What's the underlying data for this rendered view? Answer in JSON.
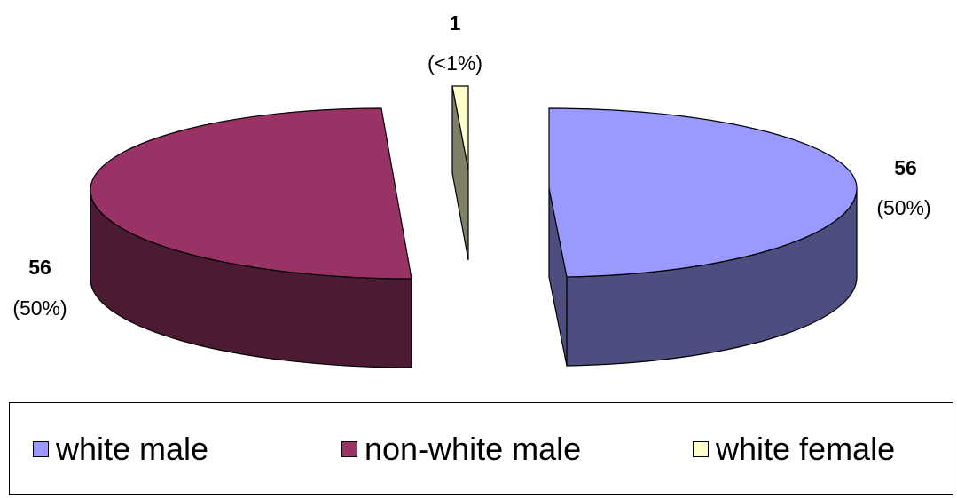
{
  "chart_data": {
    "type": "pie",
    "categories": [
      "white male",
      "non-white male",
      "white female"
    ],
    "values": [
      56,
      56,
      1
    ],
    "percent_labels": [
      "(50%)",
      "(50%)",
      "(<1%)"
    ],
    "value_labels": [
      "56",
      "56",
      "1"
    ],
    "style": "3d-exploded",
    "legend_position": "bottom",
    "colors": {
      "white_male_top": "#9999FF",
      "white_male_side": "#4D4D80",
      "non_white_male_top": "#993366",
      "non_white_male_side": "#4D1A33",
      "white_female_top": "#FFFFCC",
      "white_female_side": "#808066"
    }
  },
  "legend": {
    "items": [
      {
        "label": "white male",
        "color": "#9999FF"
      },
      {
        "label": "non-white male",
        "color": "#993366"
      },
      {
        "label": "white female",
        "color": "#FFFFCC"
      }
    ]
  }
}
